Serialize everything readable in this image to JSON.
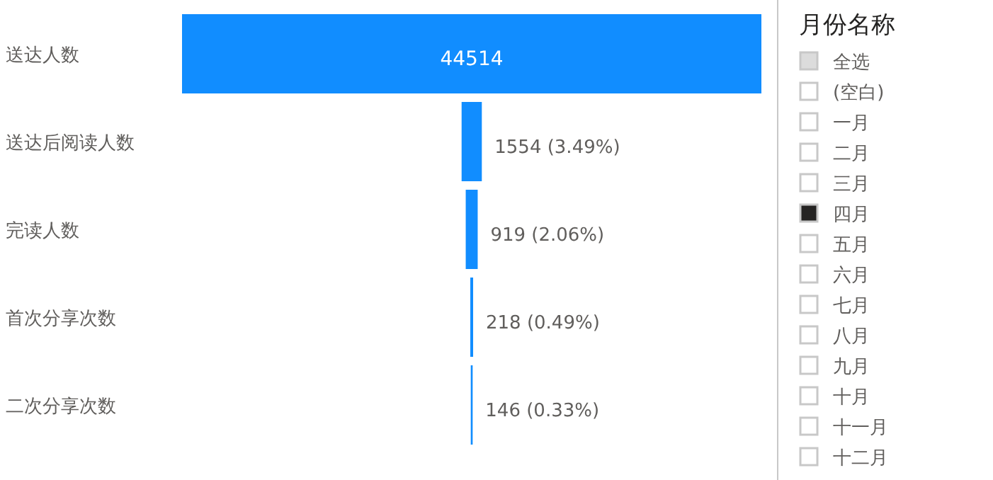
{
  "chart_data": [
    {
      "type": "other",
      "categories": [
        "送达人数",
        "送达后阅读人数",
        "完读人数",
        "首次分享次数",
        "二次分享次数"
      ],
      "values": [
        44514,
        1554,
        919,
        218,
        146
      ],
      "value_labels": [
        "44514",
        "1554 (3.49%)",
        "919 (2.06%)",
        "218 (0.49%)",
        "146 (0.33%)"
      ],
      "color": "#118dff"
    },
    {
      "type": "other",
      "title": "月份名称",
      "categories": [
        "全选",
        "(空白)",
        "一月",
        "二月",
        "三月",
        "四月",
        "五月",
        "六月",
        "七月",
        "八月",
        "九月",
        "十月",
        "十一月",
        "十二月"
      ],
      "colors": [
        "#dcdcdc",
        "#ffffff",
        "#ffffff",
        "#ffffff",
        "#ffffff",
        "#252423",
        "#ffffff",
        "#ffffff",
        "#ffffff",
        "#ffffff",
        "#ffffff",
        "#ffffff",
        "#ffffff",
        "#ffffff"
      ]
    }
  ]
}
